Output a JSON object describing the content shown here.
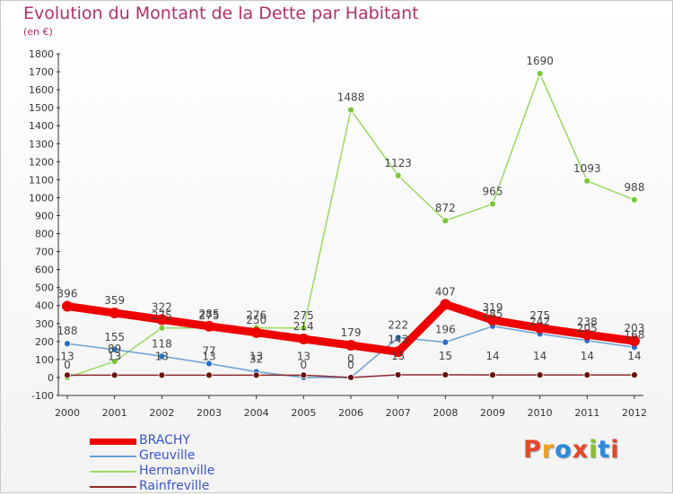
{
  "title": "Evolution du Montant de la Dette par Habitant",
  "subtitle": "(en €)",
  "logo": {
    "text": "Proxiti",
    "colors": [
      "#e6462a",
      "#f0a020",
      "#2a8ae0",
      "#e6462a",
      "#88c030",
      "#2a8ae0",
      "#e6462a"
    ]
  },
  "chart_data": {
    "type": "line",
    "title": "Evolution du Montant de la Dette par Habitant",
    "ylabel": "(en €)",
    "xlabel": "",
    "x": [
      "2000",
      "2001",
      "2002",
      "2003",
      "2004",
      "2005",
      "2006",
      "2007",
      "2008",
      "2009",
      "2010",
      "2011",
      "2012"
    ],
    "ylim": [
      -100,
      1800
    ],
    "yticks": [
      -100,
      0,
      100,
      200,
      300,
      400,
      500,
      600,
      700,
      800,
      900,
      1000,
      1100,
      1200,
      1300,
      1400,
      1500,
      1600,
      1700,
      1800
    ],
    "grid": false,
    "legend": "bottom-left",
    "series": [
      {
        "name": "BRACHY",
        "color": "#ee0000",
        "values": [
          396,
          359,
          322,
          285,
          250,
          214,
          179,
          143,
          407,
          319,
          275,
          238,
          203
        ],
        "labels": [
          "396",
          "359",
          "322",
          "285",
          "250",
          "214",
          "179",
          "143",
          "407",
          "319",
          "275",
          "238",
          "203"
        ]
      },
      {
        "name": "Greuville",
        "color": "#6aa0d4",
        "marker": "#2a6ec8",
        "values": [
          188,
          155,
          118,
          77,
          32,
          0,
          0,
          222,
          196,
          285,
          242,
          205,
          168
        ],
        "labels": [
          "188",
          "155",
          "118",
          "77",
          "32",
          "0",
          "0",
          "222",
          "196",
          "285",
          "242",
          "205",
          "168"
        ]
      },
      {
        "name": "Hermanville",
        "color": "#9ad860",
        "marker": "#7ac63a",
        "values": [
          0,
          89,
          275,
          275,
          276,
          275,
          1488,
          1123,
          872,
          965,
          1690,
          1093,
          988
        ],
        "labels": [
          "0",
          "89",
          "275",
          "275",
          "276",
          "275",
          "1488",
          "1123",
          "872",
          "965",
          "1690",
          "1093",
          "988"
        ]
      },
      {
        "name": "Rainfreville",
        "color": "#8a2a2a",
        "marker": "#6a1010",
        "values": [
          13,
          13,
          13,
          13,
          13,
          13,
          0,
          15,
          15,
          14,
          14,
          14,
          14
        ],
        "labels": [
          "13",
          "13",
          "13",
          "13",
          "13",
          "13",
          "0",
          "15",
          "15",
          "14",
          "14",
          "14",
          "14"
        ]
      }
    ]
  }
}
